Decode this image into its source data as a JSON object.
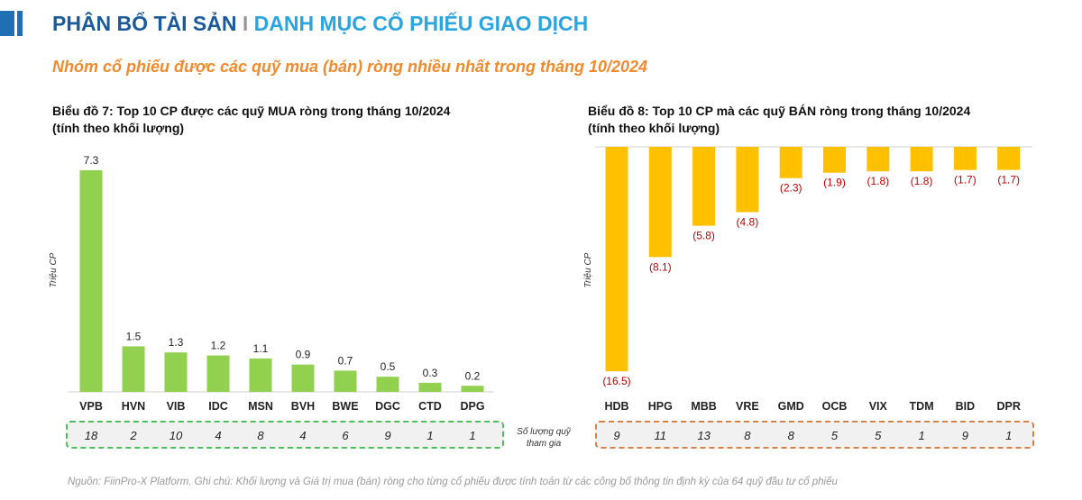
{
  "header": {
    "title_part1": "PHÂN BỔ TÀI SẢN",
    "separator": "I",
    "title_part2": "DANH MỤC CỔ PHIẾU GIAO DỊCH"
  },
  "subtitle": "Nhóm cổ phiếu được các quỹ mua (bán) ròng nhiều nhất trong tháng 10/2024",
  "fund_count_label": "Số lượng quỹ tham gia",
  "note": "Nguồn: FiinPro-X Platform. Ghi chú: Khối lượng và Giá trị mua (bán) ròng cho từng cổ phiếu được tính toán từ các công bố thông tin định kỳ của 64 quỹ đầu tư cổ phiếu",
  "colors": {
    "buy_bar": "#92d050",
    "sell_bar": "#ffc000",
    "sell_label": "#c00000",
    "title_dark": "#1a5a9a",
    "title_light": "#2aa5df",
    "subtitle": "#f08a2c"
  },
  "chart_data": [
    {
      "type": "bar",
      "title": "Biểu đồ 7: Top 10 CP được các quỹ MUA ròng trong tháng 10/2024",
      "subtitle": "(tính theo khối lượng)",
      "ylabel": "Triệu CP",
      "categories": [
        "VPB",
        "HVN",
        "VIB",
        "IDC",
        "MSN",
        "BVH",
        "BWE",
        "DGC",
        "CTD",
        "DPG"
      ],
      "values": [
        7.3,
        1.5,
        1.3,
        1.2,
        1.1,
        0.9,
        0.7,
        0.5,
        0.3,
        0.2
      ],
      "labels": [
        "7.3",
        "1.5",
        "1.3",
        "1.2",
        "1.1",
        "0.9",
        "0.7",
        "0.5",
        "0.3",
        "0.2"
      ],
      "fund_counts": [
        "18",
        "2",
        "10",
        "4",
        "8",
        "4",
        "6",
        "9",
        "1",
        "1"
      ]
    },
    {
      "type": "bar",
      "title": "Biểu đồ 8: Top 10 CP mà các quỹ BÁN ròng trong tháng 10/2024",
      "subtitle": "(tính theo khối lượng)",
      "ylabel": "Triệu CP",
      "categories": [
        "HDB",
        "HPG",
        "MBB",
        "VRE",
        "GMD",
        "OCB",
        "VIX",
        "TDM",
        "BID",
        "DPR"
      ],
      "values": [
        -16.5,
        -8.1,
        -5.8,
        -4.8,
        -2.3,
        -1.9,
        -1.8,
        -1.8,
        -1.7,
        -1.7
      ],
      "labels": [
        "(16.5)",
        "(8.1)",
        "(5.8)",
        "(4.8)",
        "(2.3)",
        "(1.9)",
        "(1.8)",
        "(1.8)",
        "(1.7)",
        "(1.7)"
      ],
      "fund_counts": [
        "9",
        "11",
        "13",
        "8",
        "8",
        "5",
        "5",
        "1",
        "9",
        "1"
      ]
    }
  ]
}
